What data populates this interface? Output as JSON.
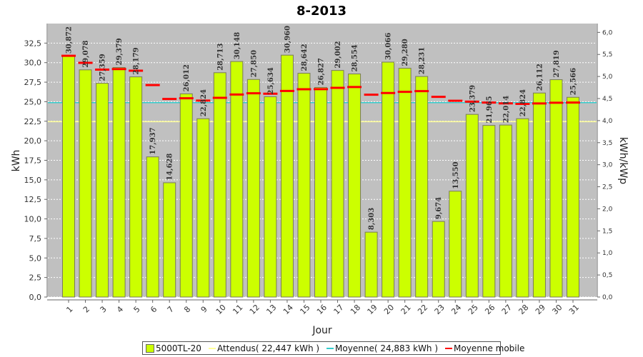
{
  "chart_data": {
    "type": "bar",
    "title": "8-2013",
    "xlabel": "Jour",
    "ylabel": "kWh",
    "y2label": "kWh/kWp",
    "ylim": [
      0,
      35
    ],
    "y2lim": [
      0,
      6.2
    ],
    "yticks": [
      "0,0",
      "2,5",
      "5,0",
      "7,5",
      "10,0",
      "12,5",
      "15,0",
      "17,5",
      "20,0",
      "22,5",
      "25,0",
      "27,5",
      "30,0",
      "32,5"
    ],
    "y2ticks": [
      "0,0",
      "0,5",
      "1,0",
      "1,5",
      "2,0",
      "2,5",
      "3,0",
      "3,5",
      "4,0",
      "4,5",
      "5,0",
      "5,5",
      "6,0"
    ],
    "categories": [
      "1",
      "2",
      "3",
      "4",
      "5",
      "6",
      "7",
      "8",
      "9",
      "10",
      "11",
      "12",
      "13",
      "14",
      "15",
      "16",
      "17",
      "18",
      "19",
      "20",
      "21",
      "22",
      "23",
      "24",
      "25",
      "26",
      "27",
      "28",
      "29",
      "30",
      "31"
    ],
    "series": [
      {
        "name": "5000TL-20",
        "color": "#ccff00",
        "values": [
          30.872,
          29.078,
          27.359,
          29.379,
          28.179,
          17.937,
          14.628,
          26.012,
          22.824,
          28.713,
          30.148,
          27.85,
          25.634,
          30.96,
          28.642,
          26.827,
          29.002,
          28.554,
          8.303,
          30.066,
          29.28,
          28.231,
          9.674,
          13.55,
          23.379,
          21.965,
          22.014,
          22.824,
          26.112,
          27.819,
          25.566
        ],
        "labels": [
          "30,872",
          "29,078",
          "27,359",
          "29,379",
          "28,179",
          "17,937",
          "14,628",
          "26,012",
          "22,824",
          "28,713",
          "30,148",
          "27,850",
          "25,634",
          "30,960",
          "28,642",
          "26,827",
          "29,002",
          "28,554",
          "8,303",
          "30,066",
          "29,280",
          "28,231",
          "9,674",
          "13,550",
          "23,379",
          "21,965",
          "22,014",
          "22,824",
          "26,112",
          "27,819",
          "25,566"
        ]
      }
    ],
    "expected": {
      "name": "Attendus( 22,447 kWh )",
      "value": 22.447,
      "color": "#ffff99"
    },
    "average": {
      "name": "Moyenne( 24,883 kWh )",
      "value": 24.883,
      "color": "#33cccc"
    },
    "moving_average": {
      "name": "Moyenne mobile",
      "color": "#ff0000",
      "values": [
        30.872,
        29.975,
        29.103,
        29.172,
        28.973,
        27.126,
        25.343,
        25.434,
        25.144,
        25.5,
        25.922,
        26.083,
        26.019,
        26.372,
        26.59,
        26.605,
        26.778,
        26.876,
        25.899,
        26.11,
        26.26,
        26.35,
        25.625,
        25.121,
        25.01,
        24.894,
        24.789,
        24.723,
        24.772,
        24.873,
        24.896
      ]
    },
    "grid": true,
    "legend_position": "bottom"
  }
}
